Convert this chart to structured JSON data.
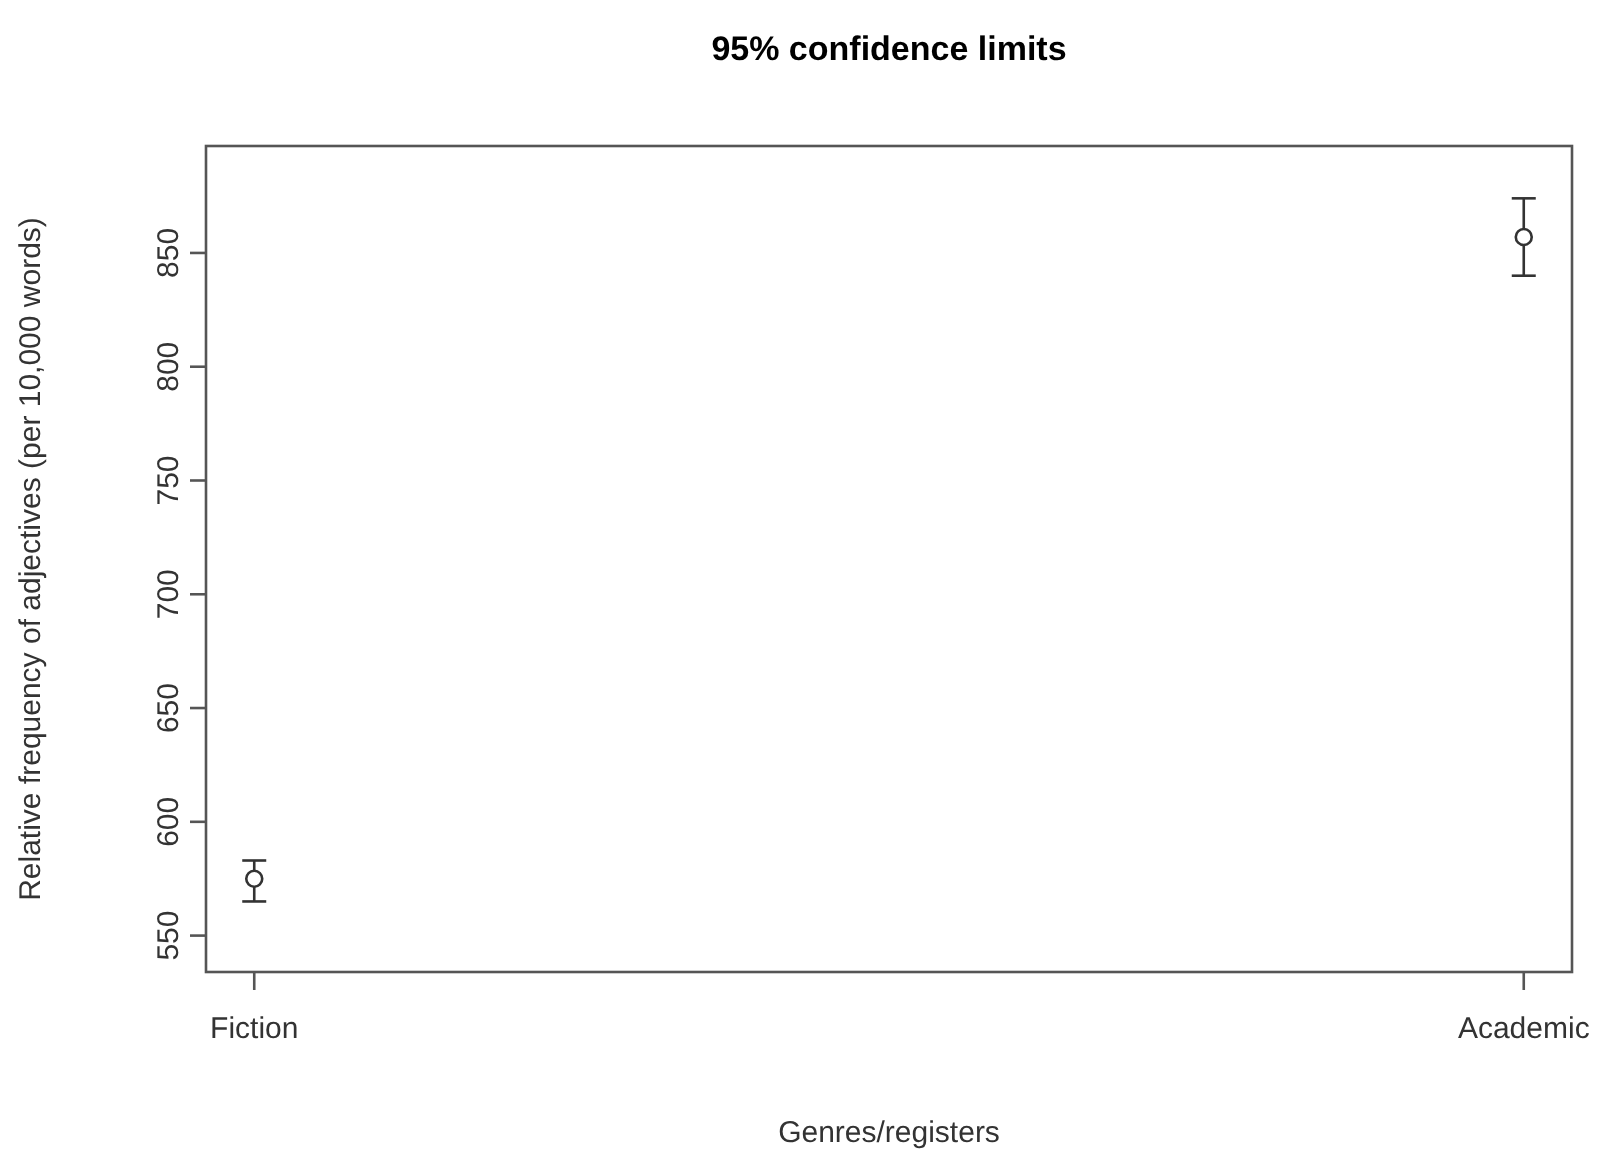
{
  "chart_data": {
    "type": "scatter",
    "title": "95% confidence limits",
    "xlabel": "Genres/registers",
    "ylabel": "Relative frequency of adjectives (per 10,000 words)",
    "categories": [
      "Fiction",
      "Academic"
    ],
    "series": [
      {
        "color": "#333333",
        "values": [
          575,
          857
        ],
        "errors": [
          [
            565,
            583
          ],
          [
            840,
            874
          ]
        ]
      }
    ],
    "ylim": [
      534,
      897
    ],
    "yticks": [
      550,
      600,
      650,
      700,
      750,
      800,
      850
    ],
    "marker": "circle"
  }
}
